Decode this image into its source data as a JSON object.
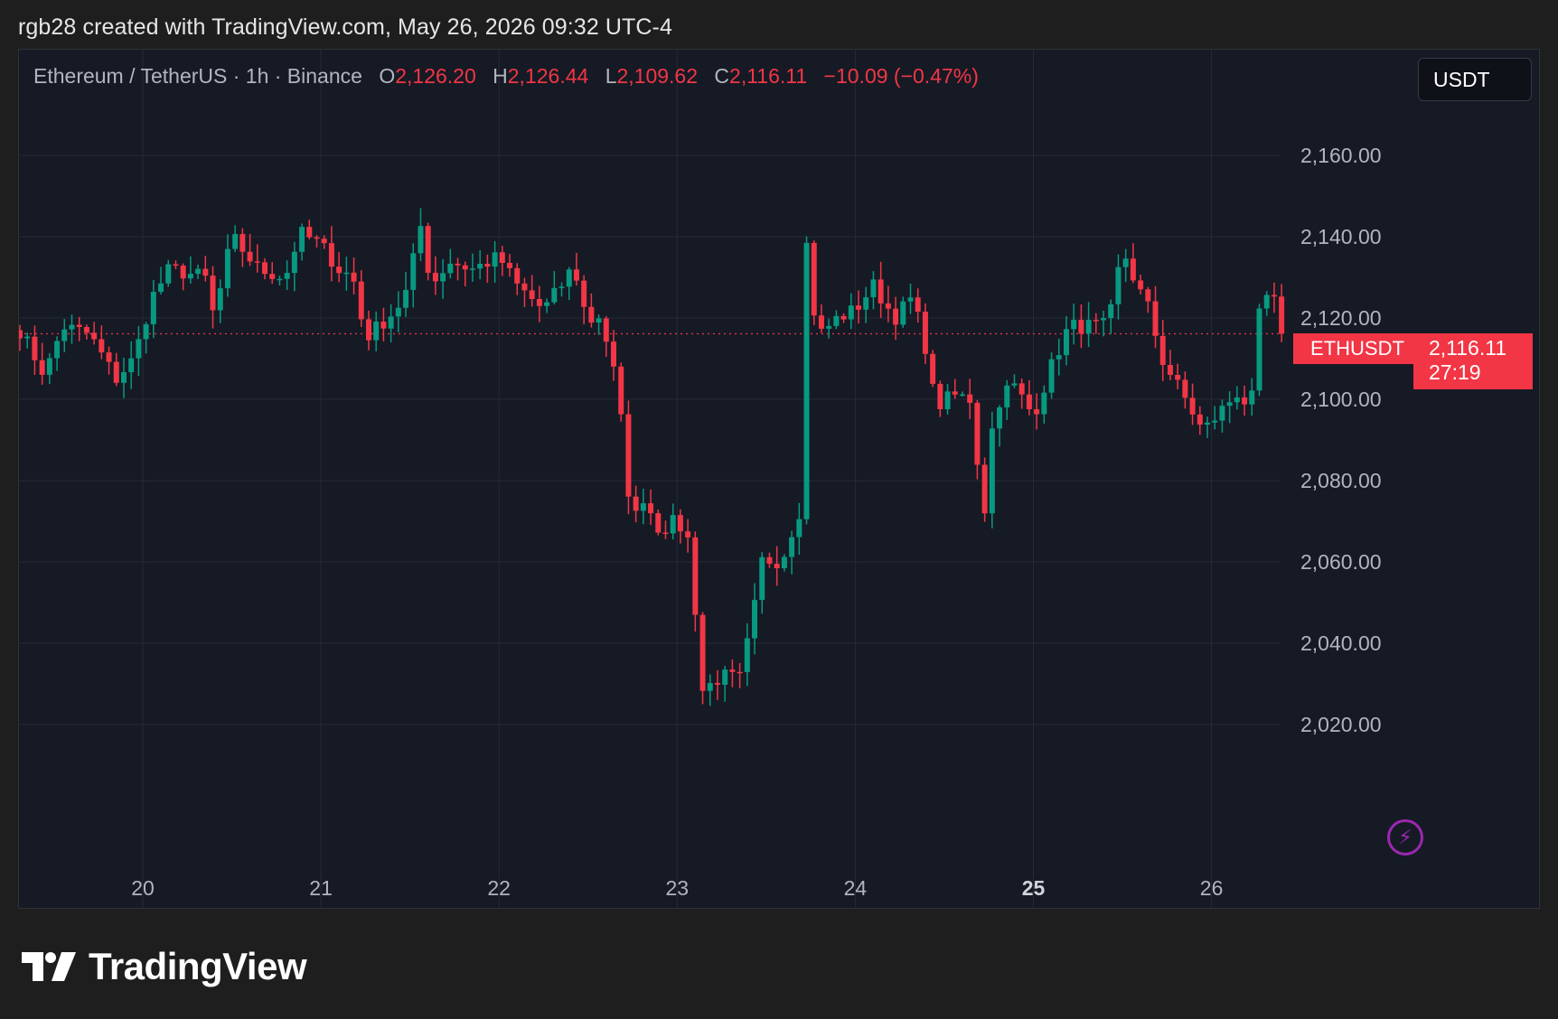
{
  "header": {
    "caption": "rgb28 created with TradingView.com, May 26, 2026 09:32 UTC-4"
  },
  "legend": {
    "symbol": "Ethereum / TetherUS · 1h · Binance",
    "o_label": "O",
    "o_value": "2,126.20",
    "h_label": "H",
    "h_value": "2,126.44",
    "l_label": "L",
    "l_value": "2,109.62",
    "c_label": "C",
    "c_value": "2,116.11",
    "change": "−10.09 (−0.47%)"
  },
  "currency_button": {
    "label": "USDT"
  },
  "last_price": {
    "symbol": "ETHUSDT",
    "price": "2,116.11",
    "countdown": "27:19"
  },
  "branding": {
    "logo_text": "TradingView"
  },
  "colors": {
    "up": "#089981",
    "down": "#f23645",
    "background": "#161a25",
    "grid": "#262a36",
    "lightning": "#9c27b0"
  },
  "icons": {
    "lightning": "lightning-icon",
    "logo": "tradingview-logo-icon"
  },
  "chart_data": {
    "type": "candlestick",
    "title": "Ethereum / TetherUS · 1h · Binance",
    "interval": "1h",
    "ylim": [
      2005,
      2170
    ],
    "y_ticks": [
      "2,160.00",
      "2,140.00",
      "2,120.00",
      "2,100.00",
      "2,080.00",
      "2,060.00",
      "2,040.00",
      "2,020.00"
    ],
    "y_tick_values": [
      2160,
      2140,
      2120,
      2100,
      2080,
      2060,
      2040,
      2020
    ],
    "x_ticks": [
      "20",
      "21",
      "22",
      "23",
      "24",
      "25",
      "26"
    ],
    "x_tick_days": [
      20,
      21,
      22,
      23,
      24,
      25,
      26
    ],
    "x_bold_tick": "25",
    "x_start_day": 19.31,
    "x_end_day": 26.41,
    "last_price": 2116.11,
    "grid": true,
    "series": [
      {
        "name": "ETHUSDT",
        "anchors": [
          {
            "d": 19.31,
            "c": 2117
          },
          {
            "d": 19.45,
            "c": 2106
          },
          {
            "d": 19.55,
            "c": 2118
          },
          {
            "d": 19.7,
            "c": 2116
          },
          {
            "d": 19.85,
            "c": 2105
          },
          {
            "d": 19.95,
            "c": 2110
          },
          {
            "d": 20.05,
            "c": 2125
          },
          {
            "d": 20.15,
            "c": 2132
          },
          {
            "d": 20.35,
            "c": 2130
          },
          {
            "d": 20.4,
            "c": 2120
          },
          {
            "d": 20.5,
            "c": 2140
          },
          {
            "d": 20.65,
            "c": 2132
          },
          {
            "d": 20.8,
            "c": 2130
          },
          {
            "d": 20.88,
            "c": 2141
          },
          {
            "d": 21.0,
            "c": 2138
          },
          {
            "d": 21.1,
            "c": 2132
          },
          {
            "d": 21.18,
            "c": 2130
          },
          {
            "d": 21.25,
            "c": 2115
          },
          {
            "d": 21.42,
            "c": 2122
          },
          {
            "d": 21.5,
            "c": 2128
          },
          {
            "d": 21.55,
            "c": 2145
          },
          {
            "d": 21.62,
            "c": 2128
          },
          {
            "d": 21.72,
            "c": 2134
          },
          {
            "d": 21.85,
            "c": 2132
          },
          {
            "d": 22.0,
            "c": 2135
          },
          {
            "d": 22.1,
            "c": 2128
          },
          {
            "d": 22.25,
            "c": 2122
          },
          {
            "d": 22.35,
            "c": 2128
          },
          {
            "d": 22.42,
            "c": 2133
          },
          {
            "d": 22.5,
            "c": 2118
          },
          {
            "d": 22.55,
            "c": 2122
          },
          {
            "d": 22.62,
            "c": 2112
          },
          {
            "d": 22.67,
            "c": 2101
          },
          {
            "d": 22.75,
            "c": 2068
          },
          {
            "d": 22.8,
            "c": 2077
          },
          {
            "d": 22.9,
            "c": 2068
          },
          {
            "d": 23.0,
            "c": 2070
          },
          {
            "d": 23.08,
            "c": 2064
          },
          {
            "d": 23.13,
            "c": 2028
          },
          {
            "d": 23.25,
            "c": 2032
          },
          {
            "d": 23.35,
            "c": 2031
          },
          {
            "d": 23.42,
            "c": 2045
          },
          {
            "d": 23.48,
            "c": 2061
          },
          {
            "d": 23.55,
            "c": 2060
          },
          {
            "d": 23.6,
            "c": 2062
          },
          {
            "d": 23.66,
            "c": 2070
          },
          {
            "d": 23.7,
            "c": 2074
          },
          {
            "d": 23.73,
            "c": 2146
          },
          {
            "d": 23.75,
            "c": 2125
          },
          {
            "d": 23.8,
            "c": 2116
          },
          {
            "d": 23.9,
            "c": 2120
          },
          {
            "d": 24.0,
            "c": 2122
          },
          {
            "d": 24.1,
            "c": 2128
          },
          {
            "d": 24.22,
            "c": 2120
          },
          {
            "d": 24.32,
            "c": 2125
          },
          {
            "d": 24.4,
            "c": 2112
          },
          {
            "d": 24.45,
            "c": 2098
          },
          {
            "d": 24.55,
            "c": 2101
          },
          {
            "d": 24.65,
            "c": 2100
          },
          {
            "d": 24.72,
            "c": 2070
          },
          {
            "d": 24.78,
            "c": 2098
          },
          {
            "d": 24.88,
            "c": 2104
          },
          {
            "d": 25.0,
            "c": 2096
          },
          {
            "d": 25.1,
            "c": 2108
          },
          {
            "d": 25.2,
            "c": 2118
          },
          {
            "d": 25.35,
            "c": 2118
          },
          {
            "d": 25.42,
            "c": 2118
          },
          {
            "d": 25.5,
            "c": 2137
          },
          {
            "d": 25.58,
            "c": 2128
          },
          {
            "d": 25.65,
            "c": 2122
          },
          {
            "d": 25.72,
            "c": 2110
          },
          {
            "d": 25.8,
            "c": 2104
          },
          {
            "d": 25.88,
            "c": 2098
          },
          {
            "d": 25.95,
            "c": 2092
          },
          {
            "d": 26.05,
            "c": 2097
          },
          {
            "d": 26.15,
            "c": 2102
          },
          {
            "d": 26.22,
            "c": 2097
          },
          {
            "d": 26.28,
            "c": 2126
          },
          {
            "d": 26.35,
            "c": 2124
          },
          {
            "d": 26.41,
            "c": 2116.11
          }
        ]
      }
    ]
  }
}
